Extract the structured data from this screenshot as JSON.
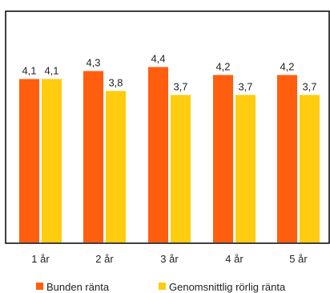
{
  "chart_data": {
    "type": "bar",
    "title": "",
    "xlabel": "",
    "ylabel": "",
    "ylim": [
      0,
      5.8
    ],
    "grid": false,
    "legend_position": "bottom",
    "categories": [
      "1 år",
      "2 år",
      "3 år",
      "4 år",
      "5 år"
    ],
    "series": [
      {
        "name": "Bunden ränta",
        "color": "#FF5E0E",
        "values": [
          4.1,
          4.3,
          4.4,
          4.2,
          4.2
        ],
        "labels": [
          "4,1",
          "4,3",
          "4,4",
          "4,2",
          "4,2"
        ]
      },
      {
        "name": "Genomsnittlig rörlig ränta",
        "color": "#FFCC0F",
        "values": [
          4.1,
          3.8,
          3.7,
          3.7,
          3.7
        ],
        "labels": [
          "4,1",
          "3,8",
          "3,7",
          "3,7",
          "3,7"
        ]
      }
    ]
  }
}
